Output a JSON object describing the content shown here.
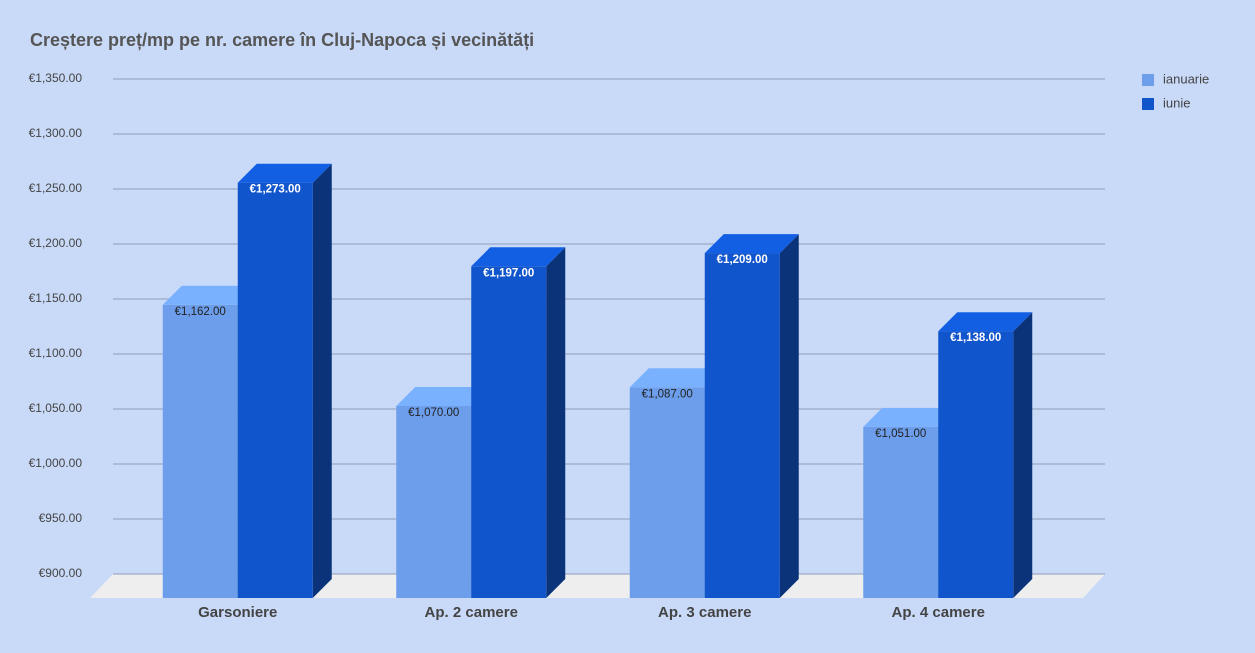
{
  "chart_data": {
    "type": "bar3d",
    "title": "Creștere preț/mp pe nr. camere în Cluj-Napoca și vecinătăți",
    "categories": [
      "Garsoniere",
      "Ap. 2 camere",
      "Ap. 3 camere",
      "Ap. 4 camere"
    ],
    "series": [
      {
        "name": "ianuarie",
        "color": "#6d9eeb",
        "values": [
          1162,
          1070,
          1087,
          1051
        ],
        "value_labels": [
          "€1,162.00",
          "€1,070.00",
          "€1,087.00",
          "€1,051.00"
        ]
      },
      {
        "name": "iunie",
        "color": "#1155cc",
        "values": [
          1273,
          1197,
          1209,
          1138
        ],
        "value_labels": [
          "€1,273.00",
          "€1,197.00",
          "€1,209.00",
          "€1,138.00"
        ]
      }
    ],
    "ylim": [
      900,
      1350
    ],
    "yticks": [
      {
        "value": 900,
        "label": "€900.00"
      },
      {
        "value": 950,
        "label": "€950.00"
      },
      {
        "value": 1000,
        "label": "€1,000.00"
      },
      {
        "value": 1050,
        "label": "€1,050.00"
      },
      {
        "value": 1100,
        "label": "€1,100.00"
      },
      {
        "value": 1150,
        "label": "€1,150.00"
      },
      {
        "value": 1200,
        "label": "€1,200.00"
      },
      {
        "value": 1250,
        "label": "€1,250.00"
      },
      {
        "value": 1300,
        "label": "€1,300.00"
      },
      {
        "value": 1350,
        "label": "€1,350.00"
      }
    ],
    "grid": true,
    "legend": "right"
  }
}
